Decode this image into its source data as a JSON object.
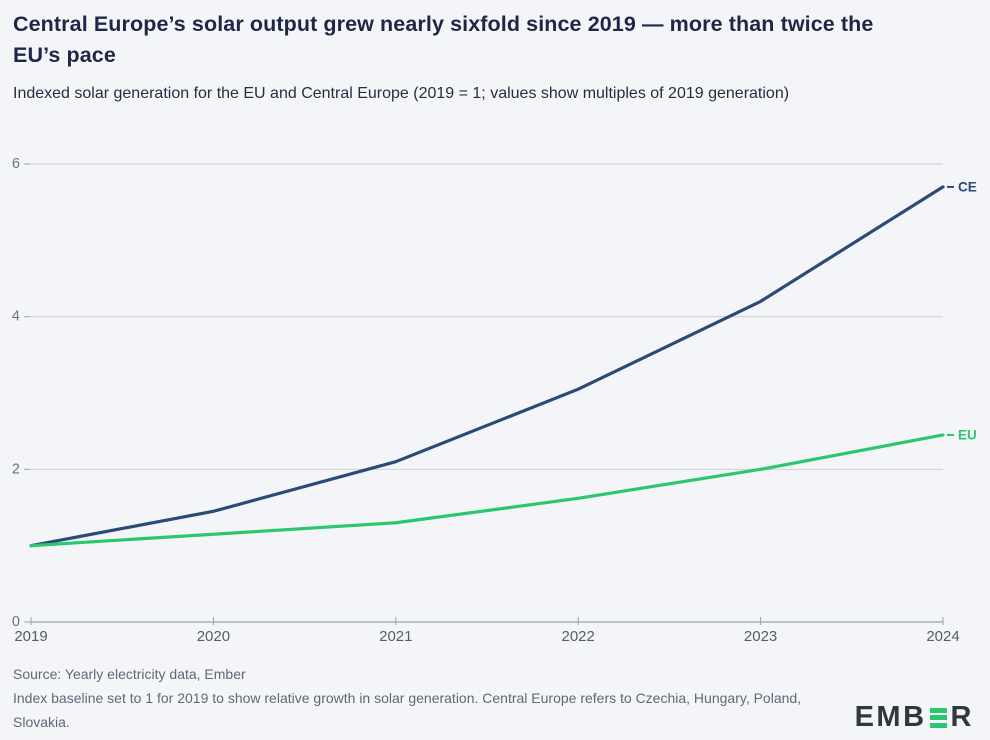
{
  "header": {},
  "chart_data": {
    "type": "line",
    "title": "Central Europe’s solar output grew nearly sixfold since 2019 — more than twice the EU’s pace",
    "subtitle": "Indexed solar generation for the EU and Central Europe (2019 = 1; values show multiples of 2019 generation)",
    "x": [
      2019,
      2020,
      2021,
      2022,
      2023,
      2024
    ],
    "series": [
      {
        "name": "CE",
        "color": "#2a4a78",
        "values": [
          1.0,
          1.45,
          2.1,
          3.05,
          4.2,
          5.7
        ]
      },
      {
        "name": "EU",
        "color": "#2bc76e",
        "values": [
          1.0,
          1.15,
          1.3,
          1.62,
          2.0,
          2.45
        ]
      }
    ],
    "xlabel": "",
    "ylabel": "",
    "ylim": [
      0,
      6
    ],
    "yticks": [
      0,
      2,
      4,
      6
    ],
    "grid": true,
    "legend_position": "line-end labels",
    "colors": {
      "background": "#f4f5f8",
      "gridline": "#ccd0d9",
      "axis": "#9aa2ae",
      "y_tick_label": "#6a7280",
      "x_tick_label": "#545c6b"
    }
  },
  "footer": {
    "source": "Source: Yearly electricity data, Ember",
    "note": "Index baseline set to 1 for 2019 to show relative growth in solar generation. Central Europe refers to Czechia, Hungary, Poland, Slovakia."
  },
  "logo": {
    "text_left": "EMB",
    "text_right": "R",
    "green": "#2bc76e",
    "dark": "#32373c"
  }
}
